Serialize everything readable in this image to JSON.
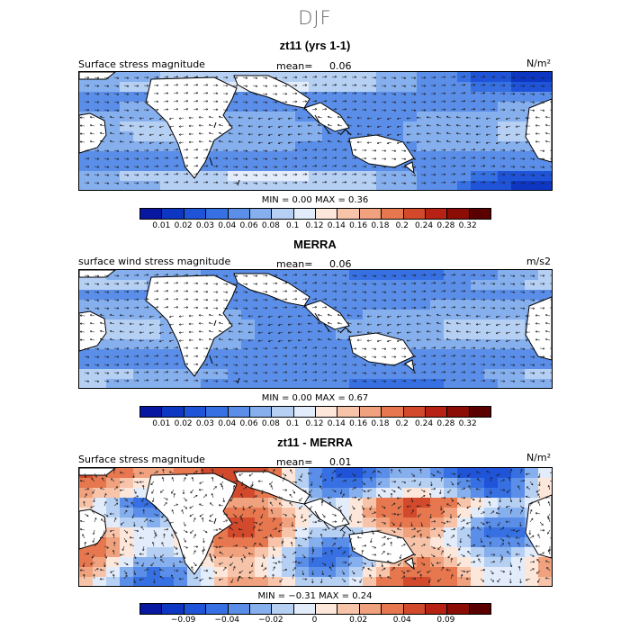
{
  "figure_title": "DJF",
  "panels": [
    {
      "title": "zt11 (yrs 1-1)",
      "variable": "Surface stress magnitude",
      "mean_label": "mean=",
      "mean_value": "0.06",
      "unit": "N/m²",
      "minmax": "MIN =    0.00  MAX =    0.36",
      "scheme": "pos",
      "colorbar_labels": [
        "0.01",
        "0.02",
        "0.03",
        "0.04",
        "0.06",
        "0.08",
        "0.1",
        "0.12",
        "0.14",
        "0.16",
        "0.18",
        "0.2",
        "0.24",
        "0.28",
        "0.32"
      ]
    },
    {
      "title": "MERRA",
      "variable": "surface wind stress magnitude",
      "mean_label": "mean=",
      "mean_value": "0.06",
      "unit": "m/s2",
      "minmax": "MIN =    0.00  MAX =    0.67",
      "scheme": "pos",
      "colorbar_labels": [
        "0.01",
        "0.02",
        "0.03",
        "0.04",
        "0.06",
        "0.08",
        "0.1",
        "0.12",
        "0.14",
        "0.16",
        "0.18",
        "0.2",
        "0.24",
        "0.28",
        "0.32"
      ]
    },
    {
      "title": "zt11 - MERRA",
      "variable": "Surface stress magnitude",
      "mean_label": "mean=",
      "mean_value": "0.01",
      "unit": "N/m²",
      "minmax": "MIN =  −0.31  MAX =    0.24",
      "scheme": "diff",
      "colorbar_labels": [
        "−0.09",
        "−0.04",
        "−0.02",
        "0",
        "0.02",
        "0.04",
        "0.09"
      ]
    }
  ],
  "colors": {
    "pos_palette": [
      "#08179f",
      "#0d36c2",
      "#1f54d8",
      "#3670e2",
      "#5a8ee8",
      "#86afee",
      "#b6d0f4",
      "#e2ecfa",
      "#fde7da",
      "#f7c4aa",
      "#f0a17d",
      "#e6774f",
      "#d24a2b",
      "#b72214",
      "#8c0d05",
      "#5a0000"
    ],
    "diff_palette": [
      "#08179f",
      "#0d36c2",
      "#1f54d8",
      "#3670e2",
      "#5a8ee8",
      "#86afee",
      "#b6d0f4",
      "#e2ecfa",
      "#fde7da",
      "#f7c4aa",
      "#f0a17d",
      "#e6774f",
      "#d24a2b",
      "#b72214",
      "#8c0d05",
      "#5a0000"
    ],
    "land": "#ffffff",
    "coast": "#000000"
  }
}
